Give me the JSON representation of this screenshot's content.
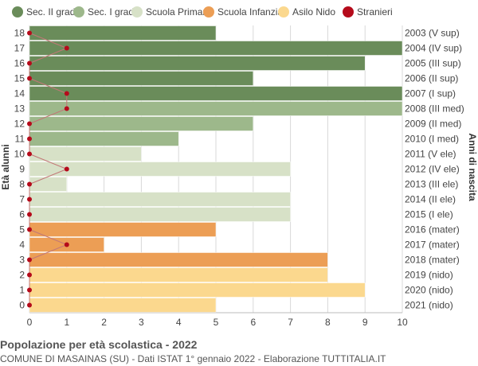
{
  "chart_data": {
    "type": "bar",
    "orientation": "horizontal",
    "title": "Popolazione per età scolastica - 2022",
    "subtitle": "COMUNE DI MASAINAS (SU) - Dati ISTAT 1° gennaio 2022 - Elaborazione TUTTITALIA.IT",
    "ylabel_left": "Età alunni",
    "ylabel_right": "Anni di nascita",
    "xlim": [
      0,
      10
    ],
    "x_ticks": [
      "0",
      "1",
      "2",
      "3",
      "4",
      "5",
      "6",
      "7",
      "8",
      "9",
      "10"
    ],
    "grid": true,
    "legend_position": "top",
    "legend": [
      {
        "label": "Sec. II grado",
        "color": "#6a8c5a",
        "marker": "circle"
      },
      {
        "label": "Sec. I grado",
        "color": "#9db88b",
        "marker": "circle"
      },
      {
        "label": "Scuola Primaria",
        "color": "#d7e1c7",
        "marker": "circle"
      },
      {
        "label": "Scuola Infanzia",
        "color": "#ec9e55",
        "marker": "circle"
      },
      {
        "label": "Asilo Nido",
        "color": "#fbd88e",
        "marker": "circle"
      },
      {
        "label": "Stranieri",
        "color": "#b50b1b",
        "marker": "circle"
      }
    ],
    "rows": [
      {
        "age": "18",
        "birth": "2003 (V sup)",
        "value": 5,
        "stranieri": 0,
        "group": 0
      },
      {
        "age": "17",
        "birth": "2004 (IV sup)",
        "value": 10,
        "stranieri": 1,
        "group": 0
      },
      {
        "age": "16",
        "birth": "2005 (III sup)",
        "value": 9,
        "stranieri": 0,
        "group": 0
      },
      {
        "age": "15",
        "birth": "2006 (II sup)",
        "value": 6,
        "stranieri": 0,
        "group": 0
      },
      {
        "age": "14",
        "birth": "2007 (I sup)",
        "value": 10,
        "stranieri": 1,
        "group": 0
      },
      {
        "age": "13",
        "birth": "2008 (III med)",
        "value": 10,
        "stranieri": 1,
        "group": 1
      },
      {
        "age": "12",
        "birth": "2009 (II med)",
        "value": 6,
        "stranieri": 0,
        "group": 1
      },
      {
        "age": "11",
        "birth": "2010 (I med)",
        "value": 4,
        "stranieri": 0,
        "group": 1
      },
      {
        "age": "10",
        "birth": "2011 (V ele)",
        "value": 3,
        "stranieri": 0,
        "group": 2
      },
      {
        "age": "9",
        "birth": "2012 (IV ele)",
        "value": 7,
        "stranieri": 1,
        "group": 2
      },
      {
        "age": "8",
        "birth": "2013 (III ele)",
        "value": 1,
        "stranieri": 0,
        "group": 2
      },
      {
        "age": "7",
        "birth": "2014 (II ele)",
        "value": 7,
        "stranieri": 0,
        "group": 2
      },
      {
        "age": "6",
        "birth": "2015 (I ele)",
        "value": 7,
        "stranieri": 0,
        "group": 2
      },
      {
        "age": "5",
        "birth": "2016 (mater)",
        "value": 5,
        "stranieri": 0,
        "group": 3
      },
      {
        "age": "4",
        "birth": "2017 (mater)",
        "value": 2,
        "stranieri": 1,
        "group": 3
      },
      {
        "age": "3",
        "birth": "2018 (mater)",
        "value": 8,
        "stranieri": 0,
        "group": 3
      },
      {
        "age": "2",
        "birth": "2019 (nido)",
        "value": 8,
        "stranieri": 0,
        "group": 4
      },
      {
        "age": "1",
        "birth": "2020 (nido)",
        "value": 9,
        "stranieri": 0,
        "group": 4
      },
      {
        "age": "0",
        "birth": "2021 (nido)",
        "value": 5,
        "stranieri": 0,
        "group": 4
      }
    ],
    "colors": {
      "grid": "#d9d9d9",
      "axis": "#bbbbbb",
      "stranieri_line": "#c27777",
      "bar_stroke": "#ffffff"
    }
  }
}
